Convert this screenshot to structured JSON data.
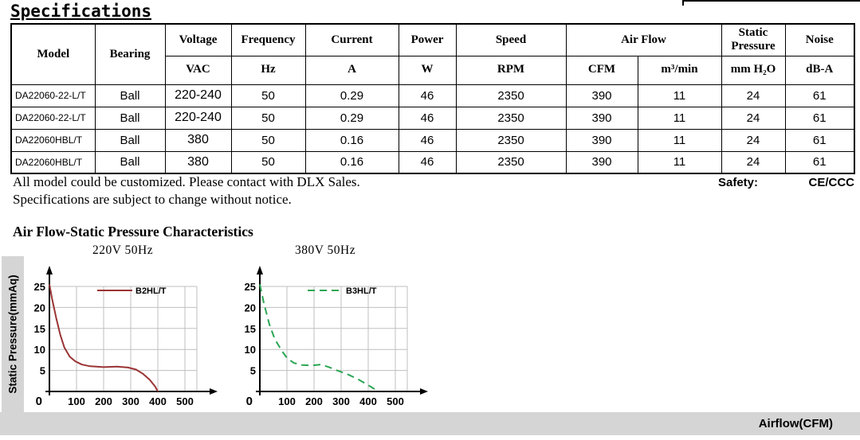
{
  "page": {
    "title": "Specifications",
    "note_line1": "All model could be customized. Please contact with DLX Sales.",
    "note_line2": "Specifications are subject to change without notice.",
    "safety_label": "Safety:",
    "safety_value": "CE/CCC",
    "section_heading": "Air Flow-Static Pressure Characteristics",
    "y_bar_label": "Static Pressure(mmAq)",
    "x_bar_label": "Airflow(CFM)"
  },
  "table": {
    "header_row1": {
      "model": "Model",
      "bearing": "Bearing",
      "voltage": "Voltage",
      "frequency": "Frequency",
      "current": "Current",
      "power": "Power",
      "speed": "Speed",
      "airflow": "Air Flow",
      "static_pressure": "Static Pressure",
      "noise": "Noise"
    },
    "header_row2": {
      "voltage": "VAC",
      "frequency": "Hz",
      "current": "A",
      "power": "W",
      "speed": "RPM",
      "airflow_cfm": "CFM",
      "airflow_m3": "m³/min",
      "static_pressure": "mm H₂O",
      "noise": "dB-A"
    },
    "rows": [
      [
        "DA22060-22-L/T",
        "Ball",
        "220-240",
        "50",
        "0.29",
        "46",
        "2350",
        "390",
        "11",
        "24",
        "61"
      ],
      [
        "DA22060-22-L/T",
        "Ball",
        "220-240",
        "50",
        "0.29",
        "46",
        "2350",
        "390",
        "11",
        "24",
        "61"
      ],
      [
        "DA22060HBL/T",
        "Ball",
        "380",
        "50",
        "0.16",
        "46",
        "2350",
        "390",
        "11",
        "24",
        "61"
      ],
      [
        "DA22060HBL/T",
        "Ball",
        "380",
        "50",
        "0.16",
        "46",
        "2350",
        "390",
        "11",
        "24",
        "61"
      ]
    ]
  },
  "chart_data": [
    {
      "type": "line",
      "title": "220V 50Hz",
      "xlabel": "Airflow(CFM)",
      "ylabel": "Static Pressure(mmAq)",
      "xlim": [
        0,
        550
      ],
      "ylim": [
        0,
        27
      ],
      "xticks": [
        100,
        200,
        300,
        400,
        500
      ],
      "yticks": [
        0,
        5,
        10,
        15,
        20,
        25
      ],
      "grid": true,
      "legend_position": "top-inside",
      "series": [
        {
          "name": "B2HL/T",
          "color": "#9a3334",
          "dash": "",
          "points": [
            [
              0,
              25.5
            ],
            [
              10,
              22
            ],
            [
              25,
              17.5
            ],
            [
              40,
              13.5
            ],
            [
              55,
              10.5
            ],
            [
              75,
              8.3
            ],
            [
              95,
              7.2
            ],
            [
              120,
              6.4
            ],
            [
              150,
              6.0
            ],
            [
              200,
              5.8
            ],
            [
              250,
              5.9
            ],
            [
              290,
              5.7
            ],
            [
              320,
              5.2
            ],
            [
              345,
              4.2
            ],
            [
              370,
              2.8
            ],
            [
              390,
              1.2
            ],
            [
              400,
              0
            ]
          ]
        }
      ]
    },
    {
      "type": "line",
      "title": "380V 50Hz",
      "xlabel": "Airflow(CFM)",
      "ylabel": "Static Pressure(mmAq)",
      "xlim": [
        0,
        550
      ],
      "ylim": [
        0,
        27
      ],
      "xticks": [
        100,
        200,
        300,
        400,
        500
      ],
      "yticks": [
        0,
        5,
        10,
        15,
        20,
        25
      ],
      "grid": true,
      "legend_position": "top-inside",
      "series": [
        {
          "name": "B3HL/T",
          "color": "#2aa653",
          "dash": "9,6",
          "points": [
            [
              0,
              25.5
            ],
            [
              15,
              21
            ],
            [
              35,
              16
            ],
            [
              55,
              12.5
            ],
            [
              80,
              9.8
            ],
            [
              100,
              8.0
            ],
            [
              125,
              6.8
            ],
            [
              155,
              6.3
            ],
            [
              190,
              6.2
            ],
            [
              225,
              6.4
            ],
            [
              255,
              5.8
            ],
            [
              285,
              5.0
            ],
            [
              320,
              4.2
            ],
            [
              360,
              3.0
            ],
            [
              400,
              1.5
            ],
            [
              430,
              0.3
            ]
          ]
        }
      ]
    }
  ]
}
